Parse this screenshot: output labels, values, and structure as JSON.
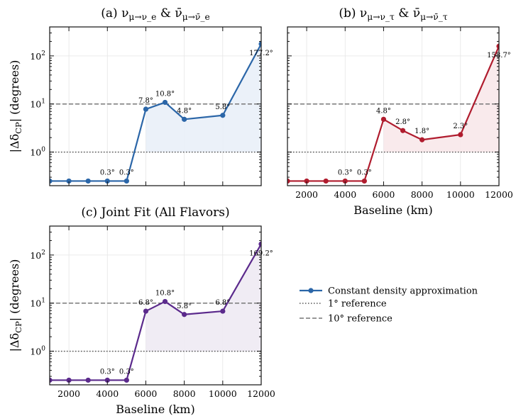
{
  "chart_data": [
    {
      "type": "line",
      "panel": "a",
      "title": "(a) ν_μ→ν_e & ν̄_μ→ν̄_e",
      "xlabel": "",
      "ylabel": "|Δδ_CP| (degrees)",
      "x": [
        1000,
        2000,
        3000,
        4000,
        5000,
        6000,
        7000,
        8000,
        10000,
        12000
      ],
      "y": [
        0.25,
        0.25,
        0.25,
        0.25,
        0.25,
        7.8,
        10.8,
        4.8,
        5.8,
        177.2
      ],
      "annotations": [
        {
          "label": "0.3°",
          "x": 4000,
          "y": 0.25
        },
        {
          "label": "0.3°",
          "x": 5000,
          "y": 0.25
        },
        {
          "label": "7.8°",
          "x": 6000,
          "y": 7.8
        },
        {
          "label": "10.8°",
          "x": 7000,
          "y": 10.8
        },
        {
          "label": "4.8°",
          "x": 8000,
          "y": 4.8
        },
        {
          "label": "5.8°",
          "x": 10000,
          "y": 5.8
        },
        {
          "label": "177.2°",
          "x": 12000,
          "y": 177.2
        }
      ],
      "color": "#2b66a8",
      "fill": "#e9f0f8",
      "xlim": [
        1000,
        12000
      ],
      "ylim": [
        0.2,
        400
      ],
      "yscale": "log",
      "xticks": [
        2000,
        4000,
        6000,
        8000,
        10000,
        12000
      ],
      "xtick_labels_shown": false,
      "yticks": [
        1,
        10,
        100
      ],
      "ytick_labels": [
        "10^0",
        "10^1",
        "10^2"
      ],
      "ytick_labels_shown": true,
      "reference_lines": [
        {
          "y": 1,
          "style": "dotted",
          "color": "#555555"
        },
        {
          "y": 10,
          "style": "dashed",
          "color": "#777777"
        }
      ],
      "grid": true
    },
    {
      "type": "line",
      "panel": "b",
      "title": "(b) ν_μ→ν_τ & ν̄_μ→ν̄_τ",
      "xlabel": "Baseline (km)",
      "ylabel": "",
      "x": [
        1000,
        2000,
        3000,
        4000,
        5000,
        6000,
        7000,
        8000,
        10000,
        12000
      ],
      "y": [
        0.25,
        0.25,
        0.25,
        0.25,
        0.25,
        4.8,
        2.8,
        1.8,
        2.3,
        158.7
      ],
      "annotations": [
        {
          "label": "0.3°",
          "x": 4000,
          "y": 0.25
        },
        {
          "label": "0.3°",
          "x": 5000,
          "y": 0.25
        },
        {
          "label": "4.8°",
          "x": 6000,
          "y": 4.8
        },
        {
          "label": "2.8°",
          "x": 7000,
          "y": 2.8
        },
        {
          "label": "1.8°",
          "x": 8000,
          "y": 1.8
        },
        {
          "label": "2.3°",
          "x": 10000,
          "y": 2.3
        },
        {
          "label": "158.7°",
          "x": 12000,
          "y": 158.7
        }
      ],
      "color": "#b01c2e",
      "fill": "#f8e8ea",
      "xlim": [
        1000,
        12000
      ],
      "ylim": [
        0.2,
        400
      ],
      "yscale": "log",
      "xticks": [
        2000,
        4000,
        6000,
        8000,
        10000,
        12000
      ],
      "xtick_labels_shown": true,
      "yticks": [
        1,
        10,
        100
      ],
      "ytick_labels": [
        "10^0",
        "10^1",
        "10^2"
      ],
      "ytick_labels_shown": false,
      "reference_lines": [
        {
          "y": 1,
          "style": "dotted",
          "color": "#555555"
        },
        {
          "y": 10,
          "style": "dashed",
          "color": "#777777"
        }
      ],
      "grid": true
    },
    {
      "type": "line",
      "panel": "c",
      "title": "(c) Joint Fit (All Flavors)",
      "xlabel": "Baseline (km)",
      "ylabel": "|Δδ_CP| (degrees)",
      "x": [
        1000,
        2000,
        3000,
        4000,
        5000,
        6000,
        7000,
        8000,
        10000,
        12000
      ],
      "y": [
        0.25,
        0.25,
        0.25,
        0.25,
        0.25,
        6.8,
        10.8,
        5.8,
        6.8,
        169.2
      ],
      "annotations": [
        {
          "label": "0.3°",
          "x": 4000,
          "y": 0.25
        },
        {
          "label": "0.3°",
          "x": 5000,
          "y": 0.25
        },
        {
          "label": "6.8°",
          "x": 6000,
          "y": 6.8
        },
        {
          "label": "10.8°",
          "x": 7000,
          "y": 10.8
        },
        {
          "label": "5.8°",
          "x": 8000,
          "y": 5.8
        },
        {
          "label": "6.8°",
          "x": 10000,
          "y": 6.8
        },
        {
          "label": "169.2°",
          "x": 12000,
          "y": 169.2
        }
      ],
      "color": "#5b2a8c",
      "fill": "#eeeaf3",
      "xlim": [
        1000,
        12000
      ],
      "ylim": [
        0.2,
        400
      ],
      "yscale": "log",
      "xticks": [
        2000,
        4000,
        6000,
        8000,
        10000,
        12000
      ],
      "xtick_labels_shown": true,
      "yticks": [
        1,
        10,
        100
      ],
      "ytick_labels": [
        "10^0",
        "10^1",
        "10^2"
      ],
      "ytick_labels_shown": true,
      "reference_lines": [
        {
          "y": 1,
          "style": "dotted",
          "color": "#555555"
        },
        {
          "y": 10,
          "style": "dashed",
          "color": "#777777"
        }
      ],
      "grid": true
    }
  ],
  "legend": {
    "placement": "lower-right empty panel",
    "entries": [
      {
        "label": "Constant density approximation",
        "style": "line-marker",
        "color": "#2b66a8"
      },
      {
        "label": "1° reference",
        "style": "dotted",
        "color": "#555555"
      },
      {
        "label": "10° reference",
        "style": "dashed",
        "color": "#777777"
      }
    ]
  }
}
